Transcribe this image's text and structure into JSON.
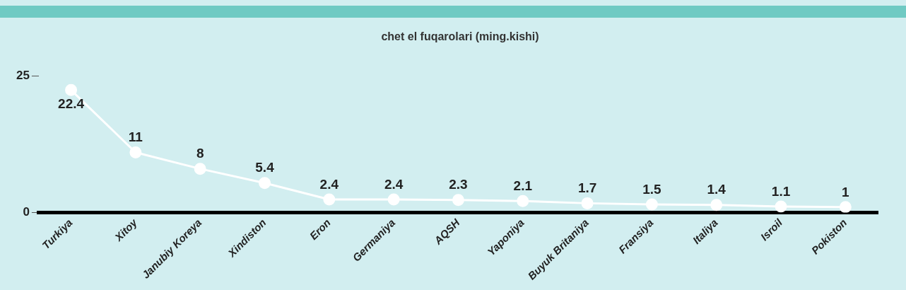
{
  "chart_data": {
    "type": "line",
    "title": "chet el fuqarolari (ming.kishi)",
    "categories": [
      "Turkiya",
      "Xitoy",
      "Janubiy Koreya",
      "Xindiston",
      "Eron",
      "Germaniya",
      "AQSH",
      "Yaponiya",
      "Buyuk Britaniya",
      "Fransiya",
      "Italiya",
      "Isroil",
      "Pokiston"
    ],
    "values": [
      22.4,
      11,
      8,
      5.4,
      2.4,
      2.4,
      2.3,
      2.1,
      1.7,
      1.5,
      1.4,
      1.1,
      1
    ],
    "color": "#ffffff",
    "ylim": [
      0,
      25
    ],
    "yticks": [
      0,
      25
    ],
    "grid": false,
    "legend": false,
    "marker": "circle",
    "line_style": "solid",
    "data_labels": true
  }
}
